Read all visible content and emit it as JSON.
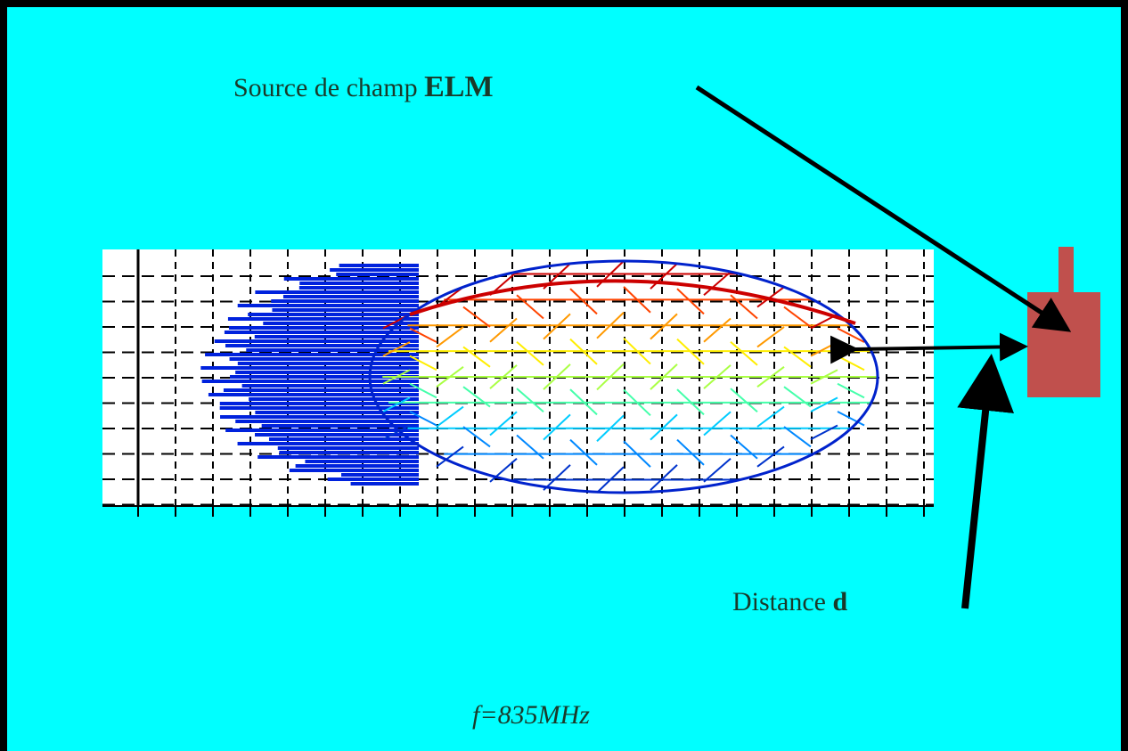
{
  "labels": {
    "source": {
      "text": "Source de champ",
      "emphasis": "ELM"
    },
    "distance": {
      "text": "Distance",
      "emphasis": "d"
    },
    "frequency": {
      "symbol": "f",
      "text": "=835MHz"
    }
  }
}
